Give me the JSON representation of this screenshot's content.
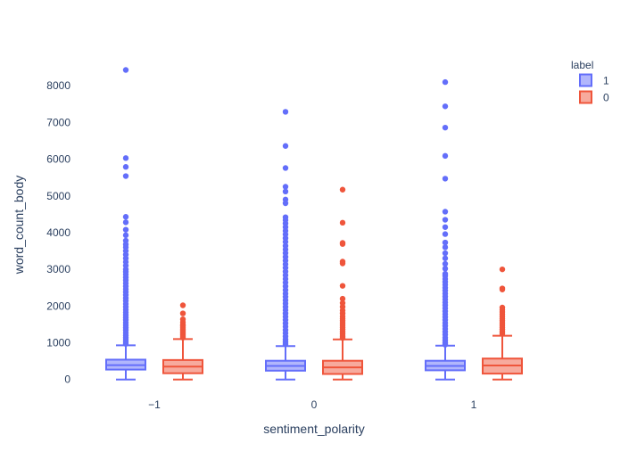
{
  "chart_data": {
    "type": "box",
    "xlabel": "sentiment_polarity",
    "ylabel": "word_count_body",
    "categories": [
      "−1",
      "0",
      "1"
    ],
    "ylim": [
      -200,
      8800
    ],
    "yticks": [
      0,
      1000,
      2000,
      3000,
      4000,
      5000,
      6000,
      7000,
      8000
    ],
    "grid": false,
    "legend": {
      "title": "label",
      "placement": "top-right",
      "items": [
        "1",
        "0"
      ]
    },
    "series": [
      {
        "name": "1",
        "color": "#636efa",
        "boxes": [
          {
            "category": "−1",
            "min": 0,
            "q1": 270,
            "median": 390,
            "q3": 540,
            "upper_fence": 930,
            "outliers": [
              8430,
              6030,
              5790,
              5540,
              4430,
              4280,
              4080,
              3930,
              3780,
              3680,
              3600,
              3500,
              3400,
              3300,
              3200,
              3100,
              3000,
              2930,
              2860,
              2780,
              2700,
              2620,
              2540,
              2460,
              2380,
              2300,
              2220,
              2140,
              2060,
              1980,
              1900,
              1830,
              1760,
              1690,
              1620,
              1550,
              1480,
              1410,
              1340,
              1270,
              1200,
              1140,
              1080,
              1020,
              970
            ]
          },
          {
            "category": "0",
            "min": 0,
            "q1": 240,
            "median": 370,
            "q3": 510,
            "upper_fence": 910,
            "outliers": [
              7290,
              6360,
              5760,
              5250,
              5120,
              4900,
              4800,
              4420,
              4340,
              4250,
              4150,
              4050,
              3950,
              3850,
              3750,
              3640,
              3540,
              3440,
              3340,
              3240,
              3140,
              3040,
              2940,
              2840,
              2740,
              2640,
              2540,
              2440,
              2340,
              2250,
              2160,
              2070,
              1980,
              1890,
              1800,
              1710,
              1620,
              1530,
              1440,
              1350,
              1260,
              1170,
              1090,
              1020,
              960
            ]
          },
          {
            "category": "1",
            "min": 0,
            "q1": 250,
            "median": 370,
            "q3": 510,
            "upper_fence": 920,
            "outliers": [
              8100,
              7440,
              6860,
              6090,
              5470,
              4570,
              4350,
              4150,
              3960,
              3730,
              3600,
              3440,
              3300,
              3150,
              3020,
              2880,
              2820,
              2740,
              2660,
              2580,
              2500,
              2420,
              2340,
              2260,
              2180,
              2100,
              2020,
              1940,
              1860,
              1780,
              1700,
              1620,
              1540,
              1460,
              1380,
              1300,
              1220,
              1140,
              1070,
              1000,
              950
            ]
          }
        ]
      },
      {
        "name": "0",
        "color": "#ef553b",
        "boxes": [
          {
            "category": "−1",
            "min": 0,
            "q1": 170,
            "median": 350,
            "q3": 530,
            "upper_fence": 1100,
            "outliers": [
              2020,
              1800,
              1640,
              1560,
              1500,
              1460,
              1420,
              1380,
              1340,
              1300,
              1260,
              1220,
              1180,
              1140
            ]
          },
          {
            "category": "0",
            "min": 0,
            "q1": 150,
            "median": 330,
            "q3": 510,
            "upper_fence": 1090,
            "outliers": [
              5170,
              4270,
              3720,
              3690,
              3210,
              3160,
              2550,
              2200,
              2080,
              1980,
              1880,
              1800,
              1720,
              1660,
              1600,
              1540,
              1480,
              1420,
              1360,
              1300,
              1240,
              1180,
              1130
            ]
          },
          {
            "category": "1",
            "min": 0,
            "q1": 160,
            "median": 380,
            "q3": 570,
            "upper_fence": 1190,
            "outliers": [
              3000,
              2480,
              2450,
              1960,
              1900,
              1840,
              1780,
              1720,
              1660,
              1600,
              1540,
              1480,
              1420,
              1360,
              1300,
              1250
            ]
          }
        ]
      }
    ]
  }
}
